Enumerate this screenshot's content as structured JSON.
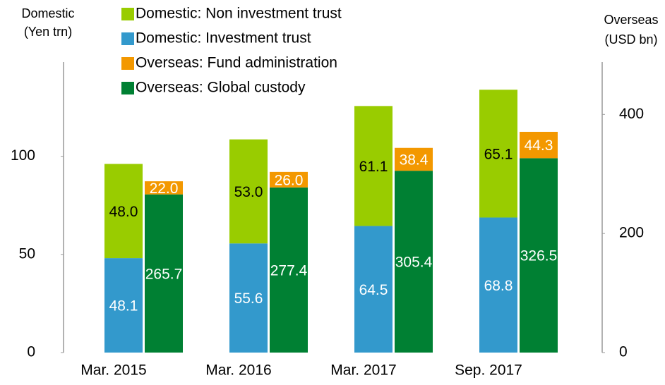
{
  "chart_data": {
    "type": "bar",
    "ylabel": [
      "Domestic",
      "(Yen trn)"
    ],
    "y2label": [
      "Overseas",
      "(USD bn)"
    ],
    "categories": [
      "Mar. 2015",
      "Mar. 2016",
      "Mar. 2017",
      "Sep. 2017"
    ],
    "series": [
      {
        "name": "Domestic: Non investment trust",
        "color": "#99cc00",
        "axis": "y",
        "values": [
          48.0,
          53.0,
          61.1,
          65.1
        ],
        "value_labels": [
          "48.0",
          "53.0",
          "61.1",
          "65.1"
        ]
      },
      {
        "name": "Domestic: Investment trust",
        "color": "#3399cc",
        "axis": "y",
        "values": [
          48.1,
          55.6,
          64.5,
          68.8
        ],
        "value_labels": [
          "48.1",
          "55.6",
          "64.5",
          "68.8"
        ]
      },
      {
        "name": "Overseas: Fund administration",
        "color": "#f39800",
        "axis": "y2",
        "values": [
          22.0,
          26.0,
          38.4,
          44.3
        ],
        "value_labels": [
          "22.0",
          "26.0",
          "38.4",
          "44.3"
        ]
      },
      {
        "name": "Overseas: Global custody",
        "color": "#008033",
        "axis": "y2",
        "values": [
          265.7,
          277.4,
          305.4,
          326.5
        ],
        "value_labels": [
          "265.7",
          "277.4",
          "305.4",
          "326.5"
        ]
      }
    ],
    "ylim": [
      0,
      148
    ],
    "yticks": [
      0,
      50,
      100
    ],
    "y2lim": [
      0,
      488
    ],
    "y2ticks": [
      0,
      200,
      400
    ],
    "legend": "top"
  }
}
